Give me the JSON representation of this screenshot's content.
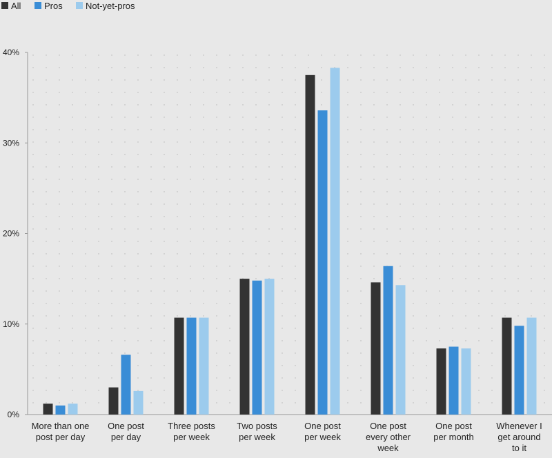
{
  "chart_data": {
    "type": "bar",
    "title": "",
    "xlabel": "",
    "ylabel": "",
    "ylim": [
      0,
      40
    ],
    "yticks": [
      "0%",
      "10%",
      "20%",
      "30%",
      "40%"
    ],
    "grid": true,
    "legend_position": "top-left",
    "categories": [
      [
        "More than one",
        "post per day"
      ],
      [
        "One post",
        "per day"
      ],
      [
        "Three posts",
        "per week"
      ],
      [
        "Two posts",
        "per week"
      ],
      [
        "One post",
        "per week"
      ],
      [
        "One post",
        "every other",
        "week"
      ],
      [
        "One post",
        "per month"
      ],
      [
        "Whenever I",
        "get around",
        "to it"
      ]
    ],
    "series": [
      {
        "name": "All",
        "color": "#333333",
        "values": [
          1.2,
          3.0,
          10.7,
          15.0,
          37.5,
          14.6,
          7.3,
          10.7
        ]
      },
      {
        "name": "Pros",
        "color": "#3a8dd6",
        "values": [
          1.0,
          6.6,
          10.7,
          14.8,
          33.6,
          16.4,
          7.5,
          9.8
        ]
      },
      {
        "name": "Not-yet-pros",
        "color": "#9ccbed",
        "values": [
          1.2,
          2.6,
          10.7,
          15.0,
          38.3,
          14.3,
          7.3,
          10.7
        ]
      }
    ]
  }
}
